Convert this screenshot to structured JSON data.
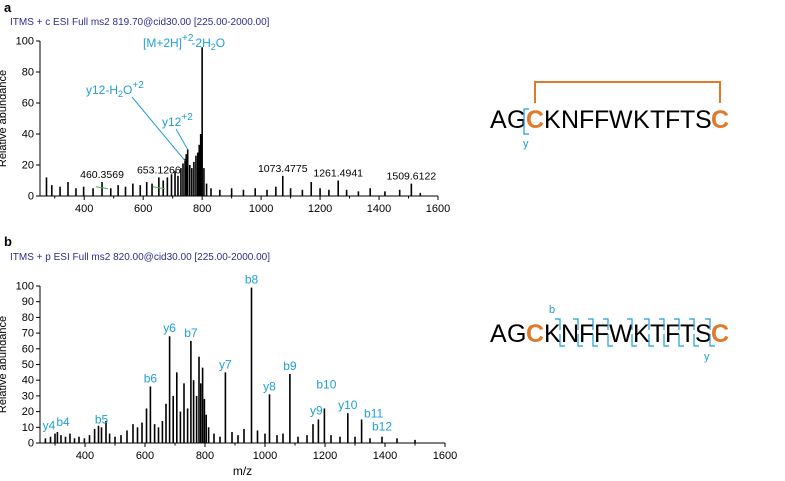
{
  "panel_a_letter": "a",
  "panel_b_letter": "b",
  "accent_color": "#e07a2a",
  "annotation_color": "#1f9fd6",
  "chart_data": [
    {
      "type": "bar",
      "panel": "a",
      "header": "ITMS + c ESI Full ms2 819.70@cid30.00 [225.00-2000.00]",
      "ylabel": "Relative abundance",
      "xlabel": "",
      "xlim": [
        250,
        1600
      ],
      "ylim": [
        0,
        100
      ],
      "xticks": [
        "400",
        "600",
        "800",
        "1000",
        "1200",
        "1400",
        "1600"
      ],
      "yticks": [
        "0",
        "20",
        "40",
        "60",
        "80",
        "100"
      ],
      "peaks": [
        {
          "x": 272,
          "y": 12
        },
        {
          "x": 290,
          "y": 7
        },
        {
          "x": 318,
          "y": 6
        },
        {
          "x": 345,
          "y": 9
        },
        {
          "x": 372,
          "y": 5
        },
        {
          "x": 398,
          "y": 6
        },
        {
          "x": 430,
          "y": 5
        },
        {
          "x": 460.3569,
          "y": 9
        },
        {
          "x": 490,
          "y": 5
        },
        {
          "x": 515,
          "y": 7
        },
        {
          "x": 540,
          "y": 6
        },
        {
          "x": 565,
          "y": 8
        },
        {
          "x": 590,
          "y": 7
        },
        {
          "x": 612,
          "y": 9
        },
        {
          "x": 630,
          "y": 8
        },
        {
          "x": 653.1266,
          "y": 12
        },
        {
          "x": 668,
          "y": 10
        },
        {
          "x": 682,
          "y": 12
        },
        {
          "x": 696,
          "y": 14
        },
        {
          "x": 708,
          "y": 16
        },
        {
          "x": 718,
          "y": 13
        },
        {
          "x": 728,
          "y": 18
        },
        {
          "x": 735,
          "y": 21
        },
        {
          "x": 742,
          "y": 24
        },
        {
          "x": 746,
          "y": 27
        },
        {
          "x": 751,
          "y": 30
        },
        {
          "x": 758,
          "y": 20
        },
        {
          "x": 765,
          "y": 18
        },
        {
          "x": 772,
          "y": 22
        },
        {
          "x": 779,
          "y": 26
        },
        {
          "x": 785,
          "y": 28
        },
        {
          "x": 790,
          "y": 33
        },
        {
          "x": 795,
          "y": 40
        },
        {
          "x": 800,
          "y": 96
        },
        {
          "x": 806,
          "y": 18
        },
        {
          "x": 815,
          "y": 8
        },
        {
          "x": 830,
          "y": 5
        },
        {
          "x": 860,
          "y": 4
        },
        {
          "x": 900,
          "y": 5
        },
        {
          "x": 940,
          "y": 4
        },
        {
          "x": 980,
          "y": 5
        },
        {
          "x": 1020,
          "y": 4
        },
        {
          "x": 1050,
          "y": 6
        },
        {
          "x": 1073.4775,
          "y": 13
        },
        {
          "x": 1100,
          "y": 5
        },
        {
          "x": 1140,
          "y": 4
        },
        {
          "x": 1170,
          "y": 9
        },
        {
          "x": 1200,
          "y": 5
        },
        {
          "x": 1230,
          "y": 4
        },
        {
          "x": 1261.4941,
          "y": 10
        },
        {
          "x": 1290,
          "y": 4
        },
        {
          "x": 1330,
          "y": 3
        },
        {
          "x": 1370,
          "y": 5
        },
        {
          "x": 1420,
          "y": 3
        },
        {
          "x": 1470,
          "y": 4
        },
        {
          "x": 1509.6122,
          "y": 8
        },
        {
          "x": 1540,
          "y": 2
        }
      ],
      "mass_labels": [
        {
          "text": "460.3569",
          "x": 460.3569,
          "y": 9
        },
        {
          "text": "653.1266",
          "x": 653.1266,
          "y": 12
        },
        {
          "text": "1073.4775",
          "x": 1073.4775,
          "y": 13
        },
        {
          "text": "1261.4941",
          "x": 1261.4941,
          "y": 10
        },
        {
          "text": "1509.6122",
          "x": 1509.6122,
          "y": 8
        }
      ],
      "ion_labels": [
        {
          "text": "[M+2H]",
          "sup": "+2",
          "after": "-2H",
          "sub": "2",
          "tail": "O"
        },
        {
          "text": "y12-H",
          "sub": "2",
          "mid": "O",
          "sup": "+2"
        },
        {
          "text": "y12",
          "sup": "+2"
        }
      ]
    },
    {
      "type": "bar",
      "panel": "b",
      "header": "ITMS + p ESI Full ms2 820.00@cid30.00 [225.00-2000.00]",
      "ylabel": "Relative abundance",
      "xlabel": "m/z",
      "xlim": [
        250,
        1600
      ],
      "ylim": [
        0,
        100
      ],
      "xticks": [
        "400",
        "600",
        "800",
        "1000",
        "1200",
        "1400",
        "1600"
      ],
      "yticks": [
        "0",
        "10",
        "20",
        "30",
        "40",
        "50",
        "60",
        "70",
        "80",
        "90",
        "100"
      ],
      "peaks": [
        {
          "x": 268,
          "y": 3
        },
        {
          "x": 285,
          "y": 4
        },
        {
          "x": 300,
          "y": 6
        },
        {
          "x": 308,
          "y": 7
        },
        {
          "x": 320,
          "y": 5
        },
        {
          "x": 335,
          "y": 4
        },
        {
          "x": 350,
          "y": 6
        },
        {
          "x": 365,
          "y": 3
        },
        {
          "x": 380,
          "y": 4
        },
        {
          "x": 398,
          "y": 3
        },
        {
          "x": 415,
          "y": 5
        },
        {
          "x": 432,
          "y": 9
        },
        {
          "x": 445,
          "y": 11
        },
        {
          "x": 455,
          "y": 10
        },
        {
          "x": 470,
          "y": 14
        },
        {
          "x": 482,
          "y": 6
        },
        {
          "x": 500,
          "y": 4
        },
        {
          "x": 520,
          "y": 5
        },
        {
          "x": 540,
          "y": 8
        },
        {
          "x": 560,
          "y": 12
        },
        {
          "x": 575,
          "y": 10
        },
        {
          "x": 590,
          "y": 13
        },
        {
          "x": 605,
          "y": 22
        },
        {
          "x": 618,
          "y": 36
        },
        {
          "x": 632,
          "y": 12
        },
        {
          "x": 645,
          "y": 10
        },
        {
          "x": 658,
          "y": 14
        },
        {
          "x": 670,
          "y": 25
        },
        {
          "x": 682,
          "y": 68
        },
        {
          "x": 694,
          "y": 30
        },
        {
          "x": 706,
          "y": 45
        },
        {
          "x": 718,
          "y": 20
        },
        {
          "x": 730,
          "y": 38
        },
        {
          "x": 742,
          "y": 22
        },
        {
          "x": 753,
          "y": 65
        },
        {
          "x": 762,
          "y": 40
        },
        {
          "x": 772,
          "y": 30
        },
        {
          "x": 780,
          "y": 55
        },
        {
          "x": 786,
          "y": 38
        },
        {
          "x": 792,
          "y": 48
        },
        {
          "x": 798,
          "y": 28
        },
        {
          "x": 804,
          "y": 18
        },
        {
          "x": 812,
          "y": 10
        },
        {
          "x": 830,
          "y": 6
        },
        {
          "x": 850,
          "y": 4
        },
        {
          "x": 868,
          "y": 45
        },
        {
          "x": 890,
          "y": 7
        },
        {
          "x": 910,
          "y": 5
        },
        {
          "x": 930,
          "y": 9
        },
        {
          "x": 955,
          "y": 99
        },
        {
          "x": 975,
          "y": 8
        },
        {
          "x": 1000,
          "y": 6
        },
        {
          "x": 1015,
          "y": 31
        },
        {
          "x": 1040,
          "y": 5
        },
        {
          "x": 1060,
          "y": 6
        },
        {
          "x": 1083,
          "y": 44
        },
        {
          "x": 1110,
          "y": 4
        },
        {
          "x": 1140,
          "y": 5
        },
        {
          "x": 1160,
          "y": 12
        },
        {
          "x": 1178,
          "y": 15
        },
        {
          "x": 1198,
          "y": 22
        },
        {
          "x": 1220,
          "y": 5
        },
        {
          "x": 1250,
          "y": 4
        },
        {
          "x": 1276,
          "y": 19
        },
        {
          "x": 1300,
          "y": 4
        },
        {
          "x": 1322,
          "y": 15
        },
        {
          "x": 1350,
          "y": 3
        },
        {
          "x": 1390,
          "y": 4
        },
        {
          "x": 1440,
          "y": 3
        },
        {
          "x": 1500,
          "y": 2
        }
      ],
      "ion_labels": [
        {
          "text": "y4",
          "x": 300,
          "y": 6
        },
        {
          "text": "b4",
          "x": 320,
          "y": 5
        },
        {
          "text": "b5",
          "x": 455,
          "y": 10
        },
        {
          "text": "b6",
          "x": 618,
          "y": 36
        },
        {
          "text": "y6",
          "x": 682,
          "y": 68
        },
        {
          "text": "b7",
          "x": 753,
          "y": 65
        },
        {
          "text": "y7",
          "x": 868,
          "y": 45
        },
        {
          "text": "b8",
          "x": 955,
          "y": 99
        },
        {
          "text": "y8",
          "x": 1015,
          "y": 31
        },
        {
          "text": "b9",
          "x": 1083,
          "y": 44
        },
        {
          "text": "y9",
          "x": 1178,
          "y": 15
        },
        {
          "text": "b10",
          "x": 1198,
          "y": 22
        },
        {
          "text": "y10",
          "x": 1276,
          "y": 19
        },
        {
          "text": "b11",
          "x": 1322,
          "y": 15
        },
        {
          "text": "b12",
          "x": 1390,
          "y": 4
        }
      ]
    }
  ],
  "sequence_a": {
    "letters": [
      "A",
      "G",
      "C",
      "K",
      "N",
      "F",
      "F",
      "W",
      "K",
      "T",
      "F",
      "T",
      "S",
      "C"
    ],
    "highlight": [
      2,
      13
    ],
    "frag_label": "y"
  },
  "sequence_b": {
    "letters": [
      "A",
      "G",
      "C",
      "K",
      "N",
      "F",
      "F",
      "W",
      "K",
      "T",
      "F",
      "T",
      "S",
      "C"
    ],
    "highlight": [
      2,
      13
    ],
    "frag_top_label": "b",
    "frag_bottom_label": "y"
  }
}
